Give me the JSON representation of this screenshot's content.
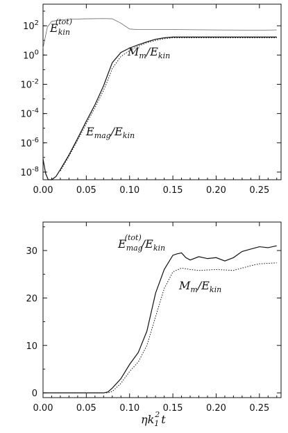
{
  "chart_data": [
    {
      "type": "line",
      "yscale": "log",
      "xlim": [
        0.0,
        0.275
      ],
      "ylim": [
        3e-09,
        3000.0
      ],
      "xticks": [
        "0.00",
        "0.05",
        "0.10",
        "0.15",
        "0.20",
        "0.25"
      ],
      "yticks": [
        {
          "base": "10",
          "exp": "2",
          "value": 100
        },
        {
          "base": "10",
          "exp": "0",
          "value": 1
        },
        {
          "base": "10",
          "exp": "-2",
          "value": 0.01
        },
        {
          "base": "10",
          "exp": "-4",
          "value": 0.0001
        },
        {
          "base": "10",
          "exp": "-6",
          "value": 1e-06
        },
        {
          "base": "10",
          "exp": "-8",
          "value": 1e-08
        }
      ],
      "annotations": [
        {
          "base": "E",
          "sub": "kin",
          "sup": "(tot)",
          "tail": ""
        },
        {
          "base": "M",
          "sub": "m",
          "sup": "",
          "tail": "/E",
          "tail_sub": "kin"
        },
        {
          "base": "E",
          "sub": "mag",
          "sup": "",
          "tail": "/E",
          "tail_sub": "kin"
        }
      ],
      "series": [
        {
          "style": "thin",
          "x": [
            0.0,
            0.005,
            0.01,
            0.02,
            0.03,
            0.05,
            0.07,
            0.08,
            0.09,
            0.1,
            0.11,
            0.13,
            0.15,
            0.2,
            0.25,
            0.27
          ],
          "y": [
            3,
            80,
            200,
            250,
            280,
            300,
            310,
            300,
            150,
            60,
            55,
            55,
            55,
            52,
            50,
            52
          ]
        },
        {
          "style": "solid",
          "x": [
            0.0,
            0.003,
            0.006,
            0.01,
            0.015,
            0.02,
            0.03,
            0.04,
            0.05,
            0.06,
            0.07,
            0.075,
            0.08,
            0.09,
            0.1,
            0.11,
            0.12,
            0.13,
            0.14,
            0.15,
            0.2,
            0.27
          ],
          "y": [
            8e-08,
            8e-09,
            3e-09,
            3e-09,
            5e-09,
            1.5e-08,
            1.5e-07,
            2e-06,
            3e-05,
            0.0004,
            0.008,
            0.05,
            0.3,
            1.5,
            3,
            5,
            8,
            12,
            15,
            17,
            17,
            17
          ]
        },
        {
          "style": "dotted",
          "x": [
            0.02,
            0.03,
            0.04,
            0.05,
            0.06,
            0.07,
            0.075,
            0.08,
            0.09,
            0.1,
            0.11,
            0.12,
            0.13,
            0.14,
            0.15,
            0.2,
            0.27
          ],
          "y": [
            1.2e-08,
            1.2e-07,
            1.5e-06,
            2e-05,
            0.00025,
            0.004,
            0.02,
            0.12,
            0.8,
            2,
            4,
            7,
            10,
            13,
            15,
            15,
            15
          ]
        }
      ]
    },
    {
      "type": "line",
      "xlim": [
        0.0,
        0.275
      ],
      "ylim": [
        -1,
        36
      ],
      "xticks": [
        "0.00",
        "0.05",
        "0.10",
        "0.15",
        "0.20",
        "0.25"
      ],
      "yticks": [
        "0",
        "10",
        "20",
        "30"
      ],
      "xlabel": {
        "pre": "η",
        "base": "k",
        "sub": "1",
        "sup": "2",
        "post": "t"
      },
      "annotations": [
        {
          "base": "E",
          "sub": "mag",
          "sup": "(tot)",
          "tail": "/E",
          "tail_sub": "kin"
        },
        {
          "base": "M",
          "sub": "m",
          "sup": "",
          "tail": "/E",
          "tail_sub": "kin"
        }
      ],
      "series": [
        {
          "style": "solid",
          "x": [
            0.0,
            0.05,
            0.07,
            0.075,
            0.08,
            0.09,
            0.1,
            0.11,
            0.12,
            0.13,
            0.14,
            0.15,
            0.155,
            0.16,
            0.165,
            0.17,
            0.18,
            0.19,
            0.2,
            0.21,
            0.22,
            0.23,
            0.24,
            0.25,
            0.26,
            0.27
          ],
          "y": [
            0,
            0,
            0,
            0.2,
            1,
            3,
            6,
            8.5,
            13,
            21,
            26,
            29,
            29.3,
            29.5,
            28.5,
            28,
            28.7,
            28.3,
            28.5,
            27.8,
            28.5,
            29.8,
            30.3,
            30.8,
            30.6,
            31
          ]
        },
        {
          "style": "dotted",
          "x": [
            0.0,
            0.05,
            0.075,
            0.08,
            0.09,
            0.1,
            0.11,
            0.12,
            0.13,
            0.14,
            0.15,
            0.16,
            0.17,
            0.18,
            0.2,
            0.22,
            0.24,
            0.25,
            0.27
          ],
          "y": [
            0,
            0,
            0,
            0.3,
            2,
            4.5,
            6.5,
            10,
            16,
            22,
            25.5,
            26.3,
            26,
            25.8,
            26,
            25.8,
            26.8,
            27.2,
            27.4
          ]
        }
      ]
    }
  ]
}
